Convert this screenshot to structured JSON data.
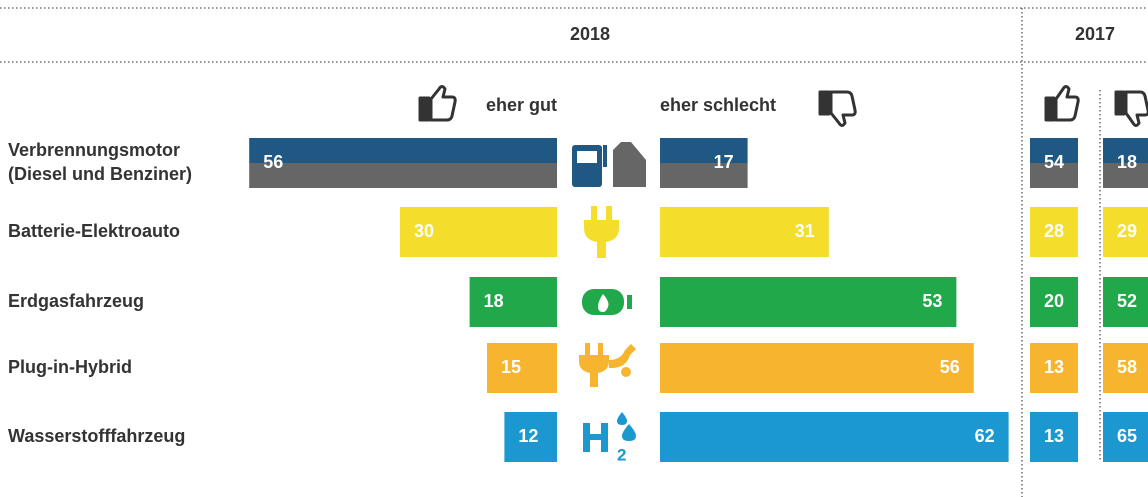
{
  "chart_data": {
    "type": "bar",
    "period": "2018",
    "categories": [
      "Verbrennungsmotor\n(Diesel und Benziner)",
      "Batterie-Elektroauto",
      "Erdgasfahrzeug",
      "Plug-in-Hybrid",
      "Wasserstofffahrzeug"
    ],
    "colors": [
      [
        "#1f5882",
        "#666666"
      ],
      [
        "#f5dd2c"
      ],
      [
        "#21a84a"
      ],
      [
        "#f7b52f"
      ],
      [
        "#1b98d0"
      ]
    ],
    "series": [
      {
        "name": "eher gut",
        "values": [
          56,
          30,
          18,
          15,
          12
        ]
      },
      {
        "name": "eher schlecht",
        "values": [
          17,
          31,
          53,
          56,
          62
        ]
      }
    ],
    "comparison": {
      "period": "2017",
      "series": [
        {
          "values": [
            54,
            28,
            20,
            13,
            13
          ]
        },
        {
          "values": [
            18,
            29,
            52,
            58,
            65
          ]
        }
      ]
    }
  }
}
